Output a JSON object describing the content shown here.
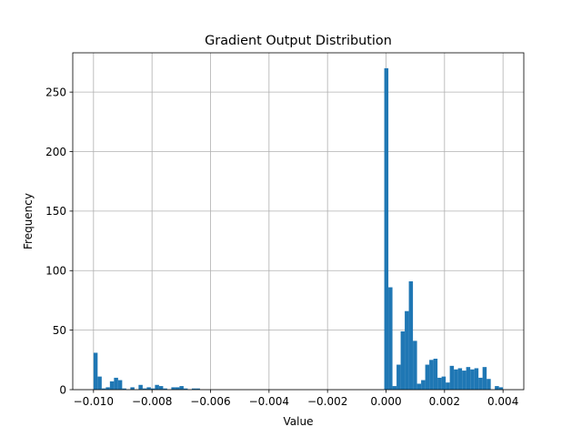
{
  "chart_data": {
    "type": "bar",
    "title": "Gradient Output Distribution",
    "xlabel": "Value",
    "ylabel": "Frequency",
    "xlim": [
      -0.01071,
      0.00471
    ],
    "ylim": [
      0,
      283
    ],
    "grid": true,
    "bar_color": "#1f77b4",
    "x_ticks": [
      -0.01,
      -0.008,
      -0.006,
      -0.004,
      -0.002,
      0.0,
      0.002,
      0.004
    ],
    "x_tick_labels": [
      "−0.010",
      "−0.008",
      "−0.006",
      "−0.004",
      "−0.002",
      "0.000",
      "0.002",
      "0.004"
    ],
    "y_ticks": [
      0,
      50,
      100,
      150,
      200,
      250
    ],
    "y_tick_labels": [
      "0",
      "50",
      "100",
      "150",
      "200",
      "250"
    ],
    "bin_start": -0.01,
    "bin_width": 0.00014,
    "values": [
      31,
      11,
      1,
      2,
      7,
      10,
      8,
      1,
      0,
      2,
      0,
      4,
      1,
      2,
      1,
      4,
      3,
      1,
      0,
      2,
      2,
      3,
      1,
      0,
      1,
      1,
      0,
      0,
      0,
      0,
      0,
      0,
      0,
      0,
      0,
      0,
      0,
      0,
      0,
      0,
      0,
      0,
      0,
      0,
      0,
      0,
      0,
      0,
      0,
      0,
      0,
      0,
      0,
      0,
      0,
      0,
      0,
      0,
      0,
      0,
      0,
      0,
      0,
      0,
      0,
      0,
      0,
      0,
      0,
      0,
      0,
      270,
      86,
      3,
      21,
      49,
      66,
      91,
      41,
      5,
      8,
      21,
      25,
      26,
      10,
      11,
      6,
      20,
      17,
      18,
      16,
      19,
      17,
      18,
      10,
      19,
      9,
      0,
      3,
      2
    ]
  }
}
